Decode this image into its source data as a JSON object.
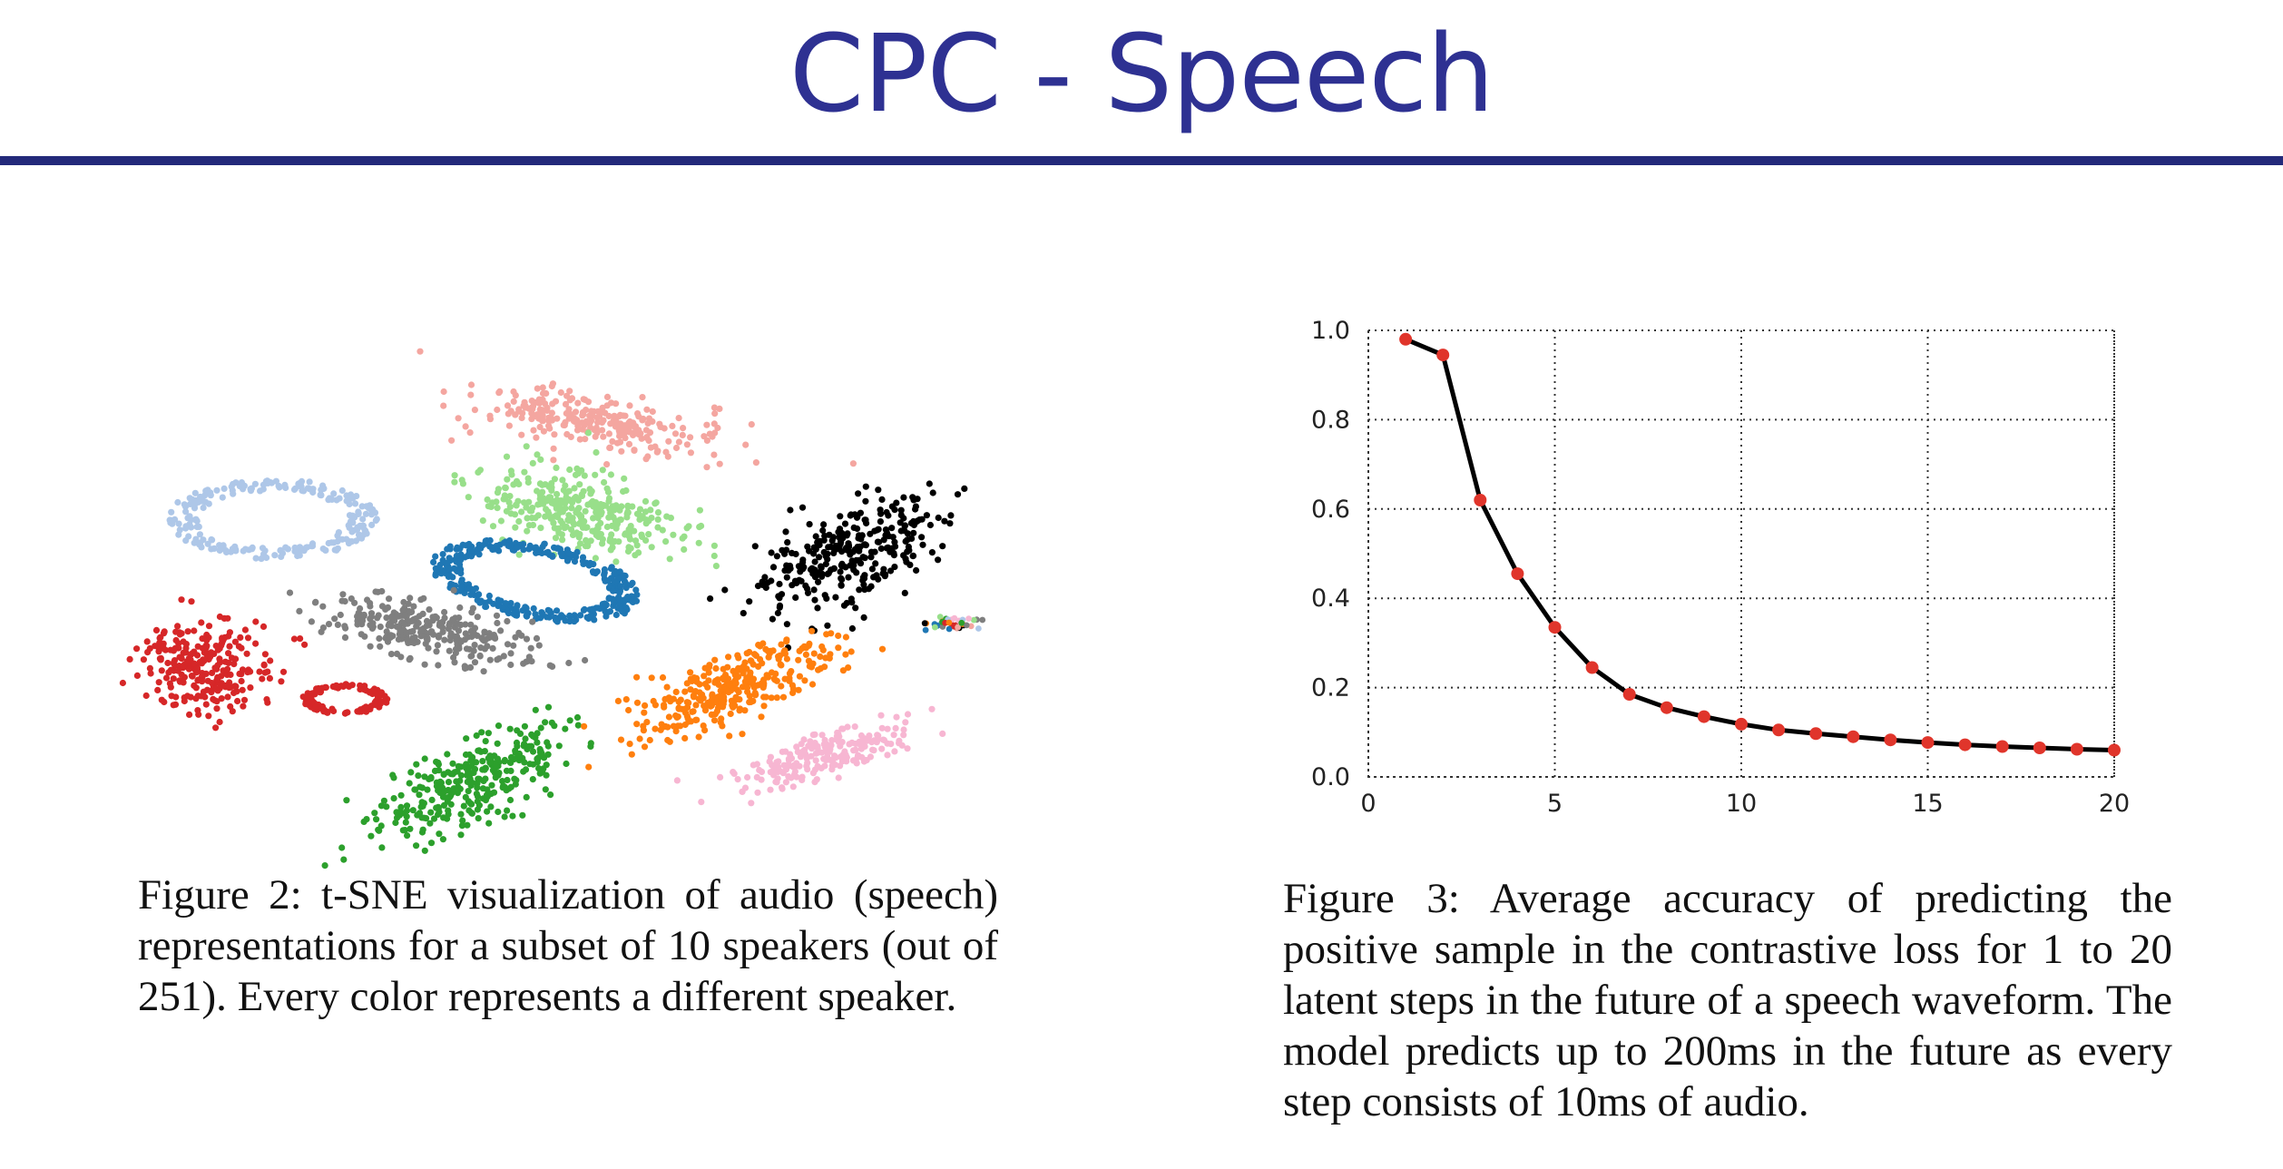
{
  "slide": {
    "title": "CPC - Speech"
  },
  "colors": {
    "title": "#2e3192",
    "rule": "#23297a",
    "line": "#000000",
    "marker": "#e0352b",
    "grid": "#333333",
    "caption": "#111111"
  },
  "figure_left": {
    "caption": "Figure 2: t-SNE visualization of audio (speech) representations for a subset of 10 speakers (out of 251). Every color represents a different speaker."
  },
  "figure_right": {
    "caption": "Figure 3: Average accuracy of predicting the positive sample in the contrastive loss for 1 to 20 latent steps in the future of a speech waveform. The model predicts up to 200ms in the future as every step consists of 10ms of audio."
  },
  "chart_data": [
    {
      "type": "scatter",
      "title": "",
      "xlabel": "",
      "ylabel": "",
      "axes": "hidden",
      "series_count": 10,
      "series_colors": [
        "#f4a6a0",
        "#aec7e8",
        "#98df8a",
        "#1f77b4",
        "#000000",
        "#7f7f7f",
        "#d62728",
        "#2ca02c",
        "#ff7f0e",
        "#f7b6d2"
      ],
      "note_visible": "no legend; each color is one speaker"
    },
    {
      "type": "line",
      "title": "",
      "xlabel": "",
      "ylabel": "",
      "x": [
        1,
        2,
        3,
        4,
        5,
        6,
        7,
        8,
        9,
        10,
        11,
        12,
        13,
        14,
        15,
        16,
        17,
        18,
        19,
        20
      ],
      "series": [
        {
          "values": [
            0.98,
            0.945,
            0.62,
            0.455,
            0.335,
            0.245,
            0.185,
            0.155,
            0.135,
            0.118,
            0.105,
            0.097,
            0.09,
            0.083,
            0.077,
            0.072,
            0.068,
            0.065,
            0.062,
            0.06
          ]
        }
      ],
      "xlim": [
        0,
        20
      ],
      "ylim": [
        0.0,
        1.0
      ],
      "xticks": [
        "0",
        "5",
        "10",
        "15",
        "20"
      ],
      "yticks": [
        "0.0",
        "0.2",
        "0.4",
        "0.6",
        "0.8",
        "1.0"
      ],
      "grid": true,
      "grid_style": "dotted",
      "markers": "red dots"
    }
  ]
}
